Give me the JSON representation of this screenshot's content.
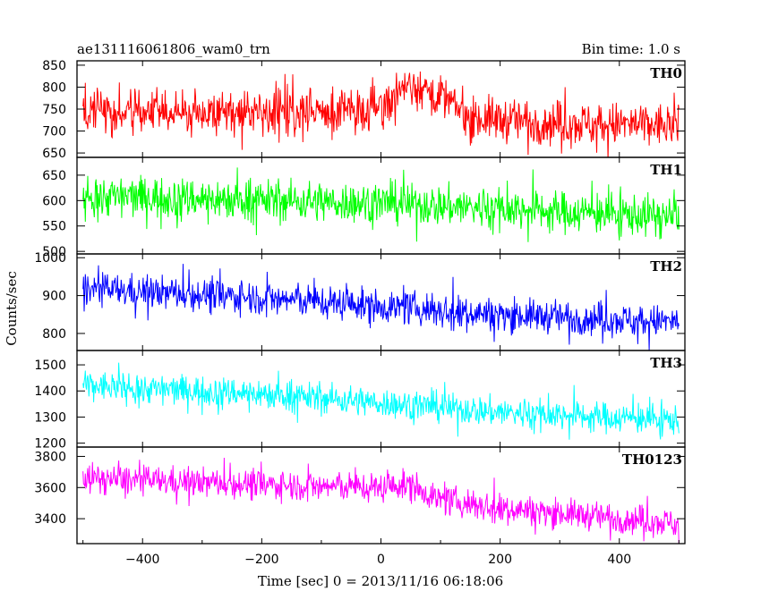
{
  "chart_data": {
    "type": "line",
    "title_left": "ae131116061806_wam0_trn",
    "title_right": "Bin time: 1.0 s",
    "xlabel": "Time [sec] 0 = 2013/11/16 06:18:06",
    "ylabel": "Counts/sec",
    "xlim": [
      -510,
      510
    ],
    "x_range": [
      -500,
      500
    ],
    "x_ticks": [
      -400,
      -200,
      0,
      200,
      400
    ],
    "grid": false,
    "panels": [
      {
        "name": "TH0",
        "color": "#ff0000",
        "ylim": [
          640,
          860
        ],
        "y_ticks": [
          650,
          700,
          750,
          800,
          850
        ],
        "trend": {
          "x": [
            -500,
            -300,
            -100,
            0,
            50,
            100,
            150,
            300,
            500
          ],
          "y": [
            740,
            745,
            742,
            760,
            810,
            780,
            730,
            718,
            712
          ]
        },
        "noise": 35,
        "spike_prob": 0.05,
        "spike_amp": 45
      },
      {
        "name": "TH1",
        "color": "#00ff00",
        "ylim": [
          495,
          685
        ],
        "y_ticks": [
          500,
          550,
          600,
          650
        ],
        "trend": {
          "x": [
            -500,
            0,
            500
          ],
          "y": [
            610,
            595,
            568
          ]
        },
        "noise": 28,
        "spike_prob": 0.05,
        "spike_amp": 40
      },
      {
        "name": "TH2",
        "color": "#0000ff",
        "ylim": [
          755,
          1010
        ],
        "y_ticks": [
          800,
          900,
          1000
        ],
        "trend": {
          "x": [
            -500,
            -200,
            0,
            200,
            500
          ],
          "y": [
            918,
            895,
            872,
            850,
            830
          ]
        },
        "noise": 30,
        "spike_prob": 0.05,
        "spike_amp": 45
      },
      {
        "name": "TH3",
        "color": "#00ffff",
        "ylim": [
          1185,
          1555
        ],
        "y_ticks": [
          1200,
          1300,
          1400,
          1500
        ],
        "trend": {
          "x": [
            -500,
            -200,
            0,
            200,
            500
          ],
          "y": [
            1420,
            1390,
            1355,
            1318,
            1288
          ]
        },
        "noise": 40,
        "spike_prob": 0.05,
        "spike_amp": 60
      },
      {
        "name": "TH0123",
        "color": "#ff00ff",
        "ylim": [
          3240,
          3860
        ],
        "y_ticks": [
          3400,
          3600,
          3800
        ],
        "trend": {
          "x": [
            -500,
            -200,
            0,
            50,
            100,
            200,
            500
          ],
          "y": [
            3660,
            3620,
            3600,
            3620,
            3520,
            3470,
            3370
          ]
        },
        "noise": 65,
        "spike_prob": 0.05,
        "spike_amp": 90
      }
    ]
  }
}
